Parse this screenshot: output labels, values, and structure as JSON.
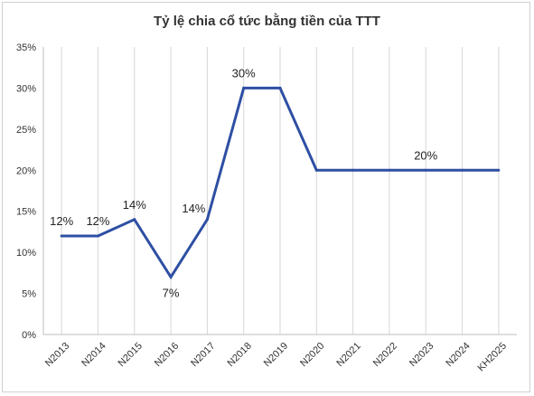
{
  "chart_data": {
    "type": "line",
    "title": "Tỷ lệ chia cổ tức bằng tiền của TTT",
    "categories": [
      "N2013",
      "N2014",
      "N2015",
      "N2016",
      "N2017",
      "N2018",
      "N2019",
      "N2020",
      "N2021",
      "N2022",
      "N2023",
      "N2024",
      "KH2025"
    ],
    "series": [
      {
        "values": [
          12,
          12,
          14,
          7,
          14,
          30,
          30,
          20,
          20,
          20,
          20,
          20,
          20
        ],
        "color": "#2e4fa3"
      }
    ],
    "y_unit": "%",
    "ylim": [
      0,
      35
    ],
    "yticks": [
      "0%",
      "5%",
      "10%",
      "15%",
      "20%",
      "25%",
      "30%",
      "35%"
    ],
    "grid": "vertical lines at categories",
    "data_labels": [
      {
        "index": 0,
        "text": "12%",
        "position": "above"
      },
      {
        "index": 1,
        "text": "12%",
        "position": "above"
      },
      {
        "index": 2,
        "text": "14%",
        "position": "above"
      },
      {
        "index": 3,
        "text": "7%",
        "position": "below"
      },
      {
        "index": 4,
        "text": "14%",
        "position": "above-left"
      },
      {
        "index": 5,
        "text": "30%",
        "position": "above"
      },
      {
        "index": 10,
        "text": "20%",
        "position": "above"
      }
    ]
  }
}
